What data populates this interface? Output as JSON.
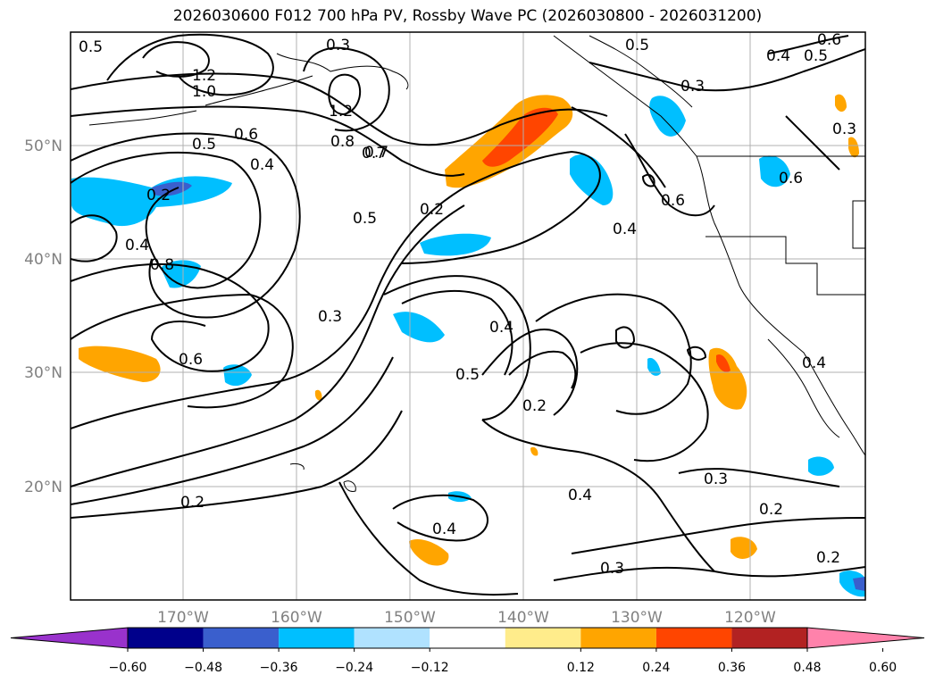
{
  "title": "2026030600 F012 700 hPa PV, Rossby Wave PC (2026030800 - 2026031200)",
  "latitudes": [
    "50°N",
    "40°N",
    "30°N",
    "20°N"
  ],
  "longitudes": [
    "170°W",
    "160°W",
    "150°W",
    "140°W",
    "130°W",
    "120°W"
  ],
  "contour_labels": [
    "0.5",
    "0.6",
    "0.7",
    "0.8",
    "1.2",
    "1.0",
    "0.5",
    "0.6",
    "0.4",
    "0.8",
    "0.7",
    "1.2",
    "0.2",
    "0.4",
    "0.5",
    "0.5",
    "0.2",
    "0.4",
    "0.6",
    "0.4",
    "0.3",
    "0.6",
    "0.3",
    "0.4",
    "0.5",
    "0.3",
    "0.2",
    "0.4",
    "0.2",
    "0.4",
    "0.3",
    "0.2",
    "0.3",
    "0.2",
    "0.4",
    "0.5",
    "0.6",
    "0.4",
    "0.3"
  ],
  "colorbar": {
    "ticks": [
      "−0.60",
      "−0.48",
      "−0.36",
      "−0.24",
      "−0.12",
      "0.12",
      "0.24",
      "0.36",
      "0.48",
      "0.60"
    ],
    "colors": [
      "#9932cc",
      "#00008b",
      "#3a5fcd",
      "#00bfff",
      "#b0e2ff",
      "#ffffff",
      "#ffec8b",
      "#ffa500",
      "#ff4500",
      "#b22222",
      "#ff82ab"
    ]
  }
}
